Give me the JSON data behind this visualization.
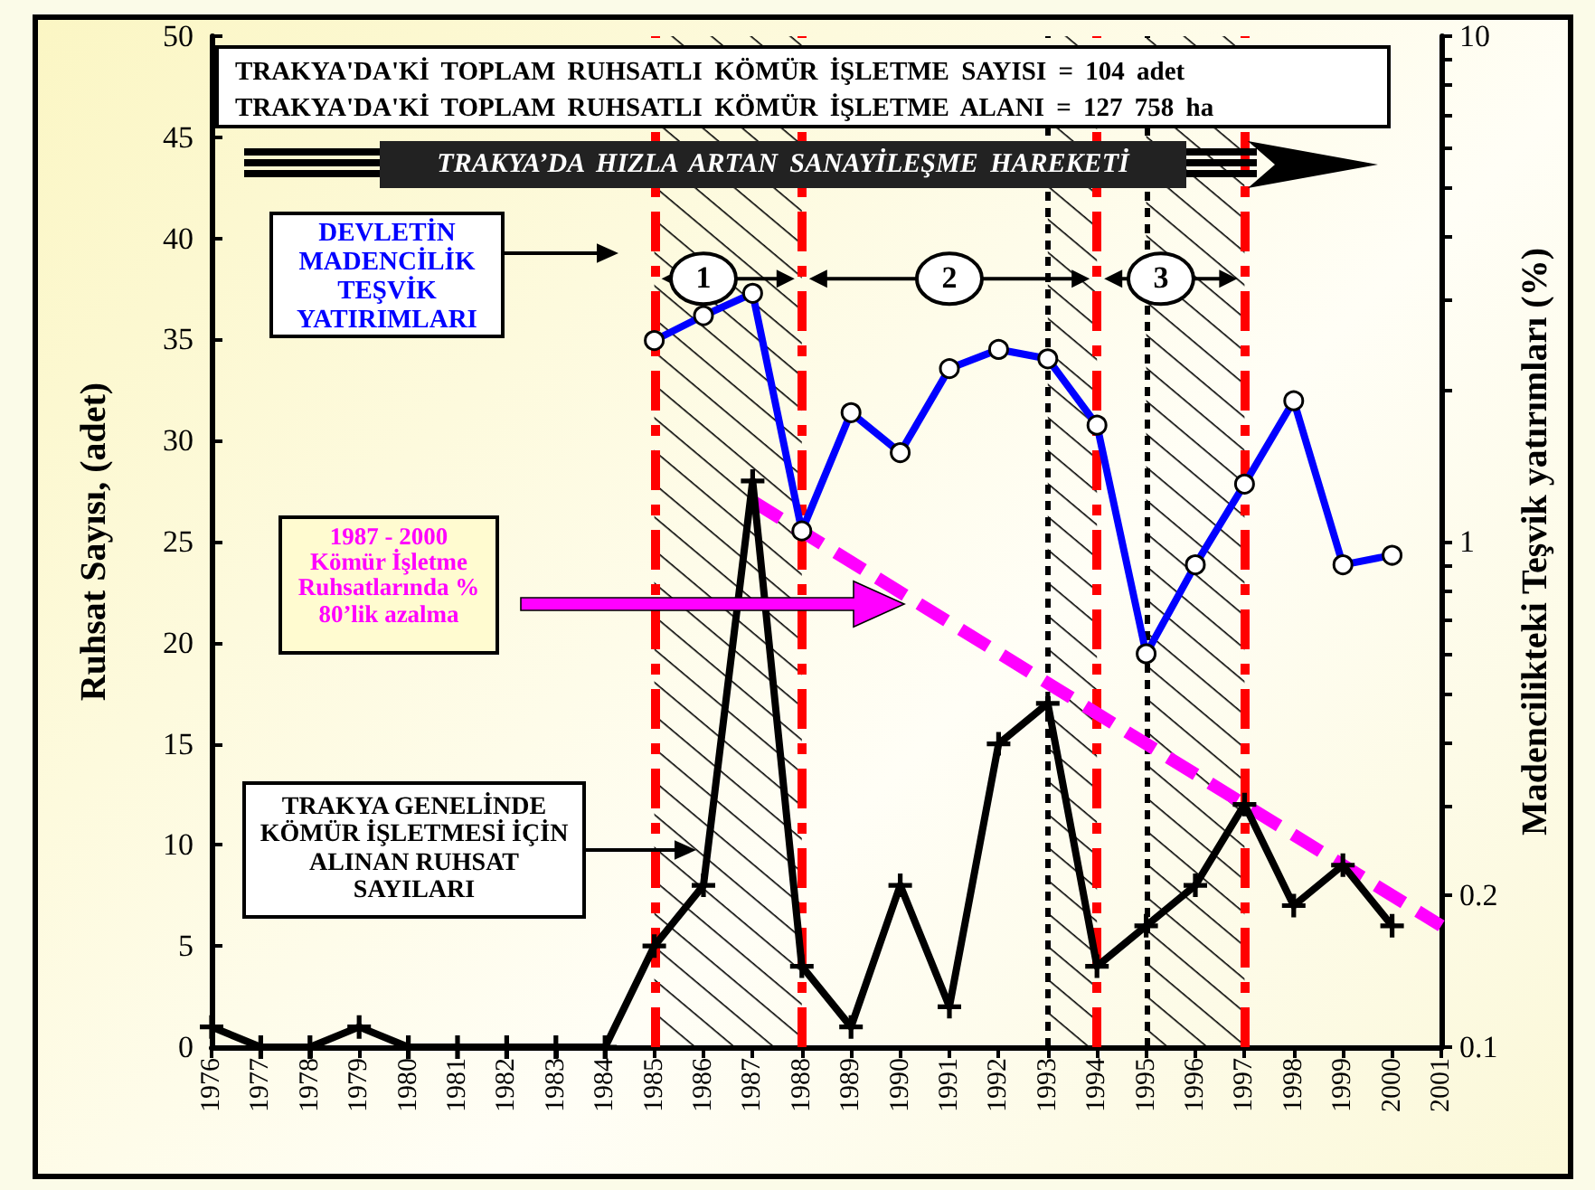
{
  "chart_data": {
    "type": "line",
    "ylabel": "Ruhsat Sayısı, (adet)",
    "y2label": "Madencilikteki Teşvik yatırımları (%)",
    "x": [
      1976,
      1977,
      1978,
      1979,
      1980,
      1981,
      1982,
      1983,
      1984,
      1985,
      1986,
      1987,
      1988,
      1989,
      1990,
      1991,
      1992,
      1993,
      1994,
      1995,
      1996,
      1997,
      1998,
      1999,
      2000
    ],
    "xlim": [
      1976,
      2001
    ],
    "xticks": [
      1976,
      1977,
      1978,
      1979,
      1980,
      1981,
      1982,
      1983,
      1984,
      1985,
      1986,
      1987,
      1988,
      1989,
      1990,
      1991,
      1992,
      1993,
      1994,
      1995,
      1996,
      1997,
      1998,
      1999,
      2000,
      2001
    ],
    "ylim": [
      0,
      50
    ],
    "yticks": [
      0,
      5,
      10,
      15,
      20,
      25,
      30,
      35,
      40,
      45,
      50
    ],
    "y2lim": [
      0.1,
      10
    ],
    "y2ticks": [
      0.1,
      0.2,
      {
        "value": 0.3,
        "label": null
      },
      {
        "value": 0.4,
        "label": null
      },
      {
        "value": 0.5,
        "label": null
      },
      {
        "value": 0.6,
        "label": null
      },
      {
        "value": 0.7,
        "label": null
      },
      {
        "value": 0.8,
        "label": null
      },
      {
        "value": 0.9,
        "label": null
      },
      1,
      {
        "value": 2,
        "label": null
      },
      {
        "value": 3,
        "label": null
      },
      {
        "value": 4,
        "label": null
      },
      {
        "value": 5,
        "label": null
      },
      {
        "value": 6,
        "label": null
      },
      {
        "value": 7,
        "label": null
      },
      {
        "value": 8,
        "label": null
      },
      {
        "value": 9,
        "label": null
      },
      10
    ],
    "log": "y2",
    "grid": false,
    "series": [
      {
        "color": "#000000",
        "marker": "cross",
        "values": [
          1,
          0,
          0,
          1,
          0,
          0,
          0,
          0,
          0,
          5,
          8,
          28,
          4,
          1,
          8,
          2,
          15,
          17,
          4,
          6,
          8,
          12,
          7,
          9,
          6
        ]
      },
      {
        "color": "#0000ff",
        "marker": "circle",
        "axis": "y2",
        "values": [
          null,
          null,
          null,
          null,
          null,
          null,
          null,
          null,
          null,
          2.5,
          2.8,
          3.1,
          1.05,
          1.8,
          1.5,
          2.2,
          2.4,
          2.3,
          1.7,
          0.6,
          0.9,
          1.3,
          1.9,
          0.9,
          0.94
        ]
      },
      {
        "color": "#ff00ff",
        "marker": "none",
        "line_style": "dashed",
        "x": [
          1987,
          2001
        ],
        "values": [
          27,
          6
        ]
      }
    ],
    "ref_lines": [
      {
        "axis": "x",
        "value": 1993,
        "color": "#000000",
        "line_style": "dotted"
      },
      {
        "axis": "x",
        "value": 1995,
        "color": "#000000",
        "line_style": "dotted"
      },
      {
        "axis": "x",
        "value": 1985,
        "color": "#ff0000",
        "line_style": "dashed"
      },
      {
        "axis": "x",
        "value": 1988,
        "color": "#ff0000",
        "line_style": "dashed"
      },
      {
        "axis": "x",
        "value": 1994,
        "color": "#ff0000",
        "line_style": "dashed"
      },
      {
        "axis": "x",
        "value": 1997,
        "color": "#ff0000",
        "line_style": "dashed"
      }
    ],
    "bands": [
      {
        "axis": "x",
        "from": 1985,
        "to": 1988
      },
      {
        "axis": "x",
        "from": 1993,
        "to": 1994
      },
      {
        "axis": "x",
        "from": 1995,
        "to": 1997
      }
    ],
    "annotations": [
      "TRAKYA'DA'Kİ TOPLAM RUHSATLI KÖMÜR İŞLETME SAYISI = 104 adet",
      "TRAKYA'DA'Kİ TOPLAM RUHSATLI KÖMÜR İŞLETME ALANI = 127 758 ha",
      "TRAKYA’DA HIZLA ARTAN SANAYİLEŞME HAREKETİ",
      "TRAKYA GENELİNDE KÖMÜR İŞLETMESİ İÇİN ALINAN RUHSAT SAYILARI",
      "DEVLETİN MADENCİLİK TEŞVİK YATIRIMLARI",
      "1987 - 2000 Kömür İşletme Ruhsatlarında % 80’lik azalma",
      {
        "text": "1",
        "x": 1986,
        "y": 38
      },
      {
        "text": "2",
        "x": 1991,
        "y": 38
      },
      {
        "text": "3",
        "x": 1995.3,
        "y": 38
      }
    ]
  }
}
